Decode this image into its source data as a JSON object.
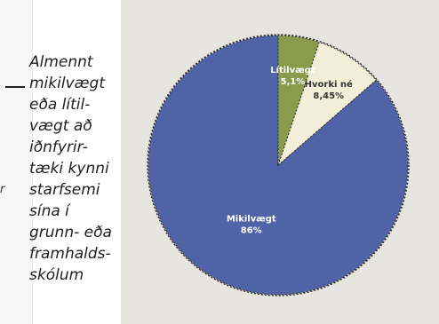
{
  "caption": {
    "lines": [
      "Almennt",
      "mikilvægt",
      "eða lítil-",
      "vægt að",
      "iðnfyrir-",
      "tæki kynni",
      "starfsemi",
      "sína í",
      "grunn- eða",
      "framhalds-",
      "skólum"
    ]
  },
  "left_fragment": {
    "char": "r"
  },
  "colors": {
    "panel_bg": "#e7e5e0",
    "major": "#4f63a6",
    "minor_cream": "#f3efd8",
    "minor_green": "#8a9b4c",
    "outline": "#2b2b2b"
  },
  "chart_data": {
    "type": "pie",
    "slices": [
      {
        "label": "Mikilvægt",
        "value_text": "86%",
        "value": 86,
        "color": "#4f63a6"
      },
      {
        "label": "Hvorki né",
        "value_text": "8,45%",
        "value": 8.45,
        "color": "#f3efd8"
      },
      {
        "label": "Lítilvægt",
        "value_text": "5,1%",
        "value": 5.1,
        "color": "#8a9b4c"
      }
    ],
    "start": "12-o'clock",
    "direction": "counter-clockwise",
    "labels_inside": true
  }
}
